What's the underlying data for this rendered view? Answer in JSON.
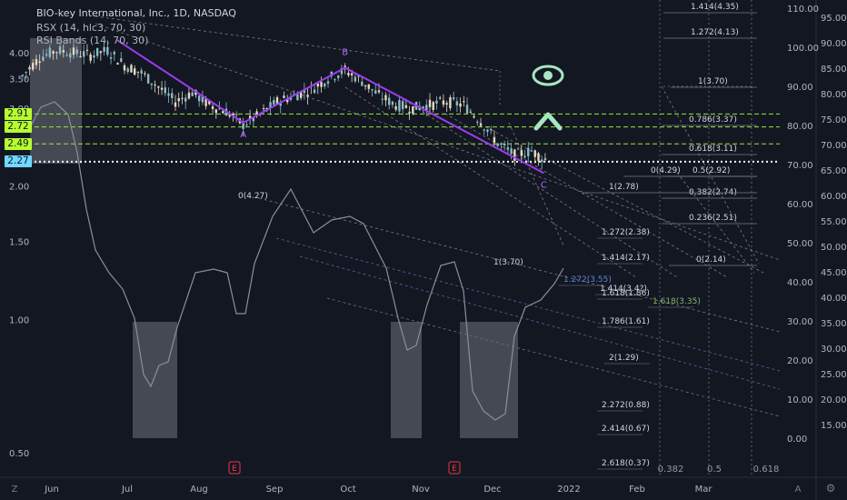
{
  "header": {
    "title": "BIO-key International, Inc., 1D, NASDAQ",
    "rsx": "RSX (14, hlc3, 70, 30)",
    "rsi_bands": "RSI Bands (14, 70, 30)"
  },
  "colors": {
    "background": "#131722",
    "candle_up": "#8bbcc6",
    "candle_down": "#e6dac0",
    "wave_line": "#9c3df0",
    "support_dash": "#9ee53a",
    "current_price": "#6fd8ff",
    "oscillator": "#8a8f99",
    "icon_green": "#a6e6c0"
  },
  "price_tags": [
    {
      "label": "2.91",
      "value": 2.91,
      "color": "#b6ff2e"
    },
    {
      "label": "2.72",
      "value": 2.72,
      "color": "#b6ff2e"
    },
    {
      "label": "2.49",
      "value": 2.49,
      "color": "#b6ff2e"
    },
    {
      "label": "2.27",
      "value": 2.27,
      "color": "#6fd8ff"
    }
  ],
  "left_axis_ticks": [
    {
      "label": "4.00",
      "value": 4.0
    },
    {
      "label": "3.50",
      "value": 3.5
    },
    {
      "label": "3.00",
      "value": 3.0
    },
    {
      "label": "2.00",
      "value": 2.0
    },
    {
      "label": "1.50",
      "value": 1.5
    },
    {
      "label": "1.00",
      "value": 1.0
    },
    {
      "label": "0.50",
      "value": 0.5
    }
  ],
  "right_axis_ticks": [
    {
      "label": "95.00",
      "value": 95
    },
    {
      "label": "90.00",
      "value": 90
    },
    {
      "label": "85.00",
      "value": 85
    },
    {
      "label": "80.00",
      "value": 80
    },
    {
      "label": "75.00",
      "value": 75
    },
    {
      "label": "70.00",
      "value": 70
    },
    {
      "label": "65.00",
      "value": 65
    },
    {
      "label": "60.00",
      "value": 60
    },
    {
      "label": "55.00",
      "value": 55
    },
    {
      "label": "50.00",
      "value": 50
    },
    {
      "label": "45.00",
      "value": 45
    },
    {
      "label": "40.00",
      "value": 40
    },
    {
      "label": "35.00",
      "value": 35
    },
    {
      "label": "30.00",
      "value": 30
    },
    {
      "label": "25.00",
      "value": 25
    },
    {
      "label": "20.00",
      "value": 20
    },
    {
      "label": "15.00",
      "value": 15
    }
  ],
  "osc_axis_ticks": [
    {
      "label": "110.00",
      "value": 110
    },
    {
      "label": "100.00",
      "value": 100
    },
    {
      "label": "90.00",
      "value": 90
    },
    {
      "label": "80.00",
      "value": 80
    },
    {
      "label": "70.00",
      "value": 70
    },
    {
      "label": "60.00",
      "value": 60
    },
    {
      "label": "50.00",
      "value": 50
    },
    {
      "label": "40.00",
      "value": 40
    },
    {
      "label": "30.00",
      "value": 30
    },
    {
      "label": "20.00",
      "value": 20
    },
    {
      "label": "10.00",
      "value": 10
    },
    {
      "label": "0.00",
      "value": 0
    }
  ],
  "x_axis_ticks": [
    "Jun",
    "Jul",
    "Aug",
    "Sep",
    "Oct",
    "Nov",
    "Dec",
    "2022",
    "Feb",
    "Mar"
  ],
  "wave_labels": [
    "A",
    "B",
    "C"
  ],
  "fib_levels_right": [
    "1.414(4.35)",
    "1.272(4.13)",
    "1(3.70)",
    "0.786(3.37)",
    "0.618(3.11)",
    "0.5(2.92)",
    "0.382(2.74)",
    "0.236(2.51)",
    "0(2.14)",
    "0(4.29)",
    "1(2.78)"
  ],
  "fib_ext_levels": [
    "1.272(2.38)",
    "1.414(2.17)",
    "1.272(3.55)",
    "1.414(3.4?)",
    "1.618(1.86)",
    "1.618(3.35)",
    "1.786(1.61)",
    "2(1.29)",
    "2.272(0.88)",
    "2.414(0.67)",
    "2.618(0.37)"
  ],
  "fib_misc_labels": [
    "0(4.27)",
    "1(3.70)"
  ],
  "fib_time_labels": [
    "0.382",
    "0.5",
    "0.618"
  ],
  "earnings_markers": [
    "E",
    "E"
  ],
  "corner_labels": {
    "left": "Z",
    "a": "A",
    "gear": "⚙"
  },
  "chart_data": {
    "type": "candlestick",
    "title": "BIO-key International, Inc., 1D, NASDAQ",
    "xlabel": "",
    "ylabel": "",
    "ylim": [
      0.3,
      4.4
    ],
    "x_ticks": [
      "Jun",
      "Jul",
      "Aug",
      "Sep",
      "Oct",
      "Nov",
      "Dec",
      "2022",
      "Feb",
      "Mar"
    ],
    "price_path": [
      {
        "date": "2021-05-20",
        "close": 3.55
      },
      {
        "date": "2021-05-27",
        "close": 3.9
      },
      {
        "date": "2021-06-03",
        "close": 4.05
      },
      {
        "date": "2021-06-10",
        "close": 4.0
      },
      {
        "date": "2021-06-17",
        "close": 3.95
      },
      {
        "date": "2021-06-24",
        "close": 4.05
      },
      {
        "date": "2021-07-01",
        "close": 3.75
      },
      {
        "date": "2021-07-08",
        "close": 3.6
      },
      {
        "date": "2021-07-15",
        "close": 3.35
      },
      {
        "date": "2021-07-22",
        "close": 3.1
      },
      {
        "date": "2021-07-29",
        "close": 3.25
      },
      {
        "date": "2021-08-05",
        "close": 3.05
      },
      {
        "date": "2021-08-12",
        "close": 2.95
      },
      {
        "date": "2021-08-19",
        "close": 2.75
      },
      {
        "date": "2021-08-26",
        "close": 2.9
      },
      {
        "date": "2021-09-02",
        "close": 3.1
      },
      {
        "date": "2021-09-09",
        "close": 3.2
      },
      {
        "date": "2021-09-16",
        "close": 3.3
      },
      {
        "date": "2021-09-23",
        "close": 3.5
      },
      {
        "date": "2021-09-30",
        "close": 3.65
      },
      {
        "date": "2021-10-07",
        "close": 3.45
      },
      {
        "date": "2021-10-14",
        "close": 3.2
      },
      {
        "date": "2021-10-21",
        "close": 3.05
      },
      {
        "date": "2021-10-28",
        "close": 3.0
      },
      {
        "date": "2021-11-04",
        "close": 3.05
      },
      {
        "date": "2021-11-11",
        "close": 3.1
      },
      {
        "date": "2021-11-18",
        "close": 3.05
      },
      {
        "date": "2021-11-25",
        "close": 2.8
      },
      {
        "date": "2021-12-02",
        "close": 2.5
      },
      {
        "date": "2021-12-09",
        "close": 2.35
      },
      {
        "date": "2021-12-16",
        "close": 2.4
      },
      {
        "date": "2021-12-23",
        "close": 2.27
      }
    ],
    "wave_points": [
      {
        "label": "",
        "date": "2021-06-28",
        "value": 4.27
      },
      {
        "label": "A",
        "date": "2021-08-19",
        "value": 2.78
      },
      {
        "label": "B",
        "date": "2021-09-30",
        "value": 3.7
      },
      {
        "label": "C",
        "date": "2021-12-21",
        "value": 2.14
      }
    ],
    "horizontal_levels": [
      2.91,
      2.72,
      2.49
    ],
    "current_price": 2.27,
    "series": [
      {
        "name": "RSX (14, hlc3, 70, 30)",
        "type": "oscillator"
      },
      {
        "name": "RSI Bands (14, 70, 30)",
        "type": "bands"
      }
    ]
  }
}
